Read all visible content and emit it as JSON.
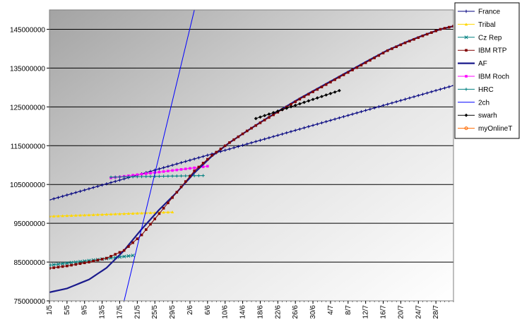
{
  "chart_data": {
    "type": "line",
    "title": "",
    "xlabel": "",
    "ylabel": "",
    "ylim": [
      75000000,
      150000000
    ],
    "y_ticks": [
      75000000,
      85000000,
      95000000,
      105000000,
      115000000,
      125000000,
      135000000,
      145000000
    ],
    "y_tick_labels": [
      "75000000",
      "85000000",
      "95000000",
      "105000000",
      "115000000",
      "125000000",
      "135000000",
      "145000000"
    ],
    "x_tick_labels": [
      "1/5",
      "5/5",
      "9/5",
      "13/5",
      "17/5",
      "21/5",
      "25/5",
      "29/5",
      "2/6",
      "6/6",
      "10/6",
      "14/6",
      "18/6",
      "22/6",
      "26/6",
      "30/6",
      "4/7",
      "8/7",
      "12/7",
      "16/7",
      "20/7",
      "24/7",
      "28/7"
    ],
    "x_day_range": [
      1,
      93
    ],
    "grid": "horizontal",
    "legend_position": "right",
    "background": "gradient-gray",
    "series": [
      {
        "name": "France",
        "color": "#00007f",
        "marker": "plus",
        "x": [
          1,
          93
        ],
        "y": [
          101000000,
          130500000
        ]
      },
      {
        "name": "Tribal",
        "color": "#ffd700",
        "marker": "triangle",
        "x": [
          1,
          29
        ],
        "y": [
          96800000,
          97900000
        ]
      },
      {
        "name": "Cz Rep",
        "color": "#008080",
        "marker": "cross",
        "x": [
          1,
          20
        ],
        "y": [
          84200000,
          86700000
        ]
      },
      {
        "name": "IBM RTP",
        "color": "#800000",
        "marker": "square",
        "x": [
          1,
          5,
          10,
          14,
          18,
          22,
          26,
          30,
          34,
          38,
          42,
          46,
          50,
          54,
          58,
          62,
          66,
          70,
          74,
          78,
          82,
          86,
          90,
          93
        ],
        "y": [
          83400000,
          84000000,
          85000000,
          86000000,
          88000000,
          92000000,
          97500000,
          103000000,
          108500000,
          112500000,
          115800000,
          118800000,
          121600000,
          124300000,
          127000000,
          129500000,
          132000000,
          134500000,
          137000000,
          139500000,
          141500000,
          143300000,
          145000000,
          145800000
        ]
      },
      {
        "name": "AF",
        "color": "#1a1a8c",
        "marker": "none",
        "x": [
          1,
          5,
          10,
          14,
          18,
          22,
          26,
          30,
          34,
          38,
          42,
          46,
          50,
          54,
          58,
          62,
          66,
          70,
          74,
          78,
          82,
          86,
          90,
          93
        ],
        "y": [
          77200000,
          78200000,
          80500000,
          83500000,
          88000000,
          93500000,
          98500000,
          103000000,
          108000000,
          112300000,
          115800000,
          118800000,
          121700000,
          124500000,
          127200000,
          129700000,
          132200000,
          134700000,
          137200000,
          139600000,
          141600000,
          143400000,
          145000000,
          145800000
        ]
      },
      {
        "name": "IBM Roch",
        "color": "#ff00ff",
        "marker": "square",
        "x": [
          15,
          37
        ],
        "y": [
          106700000,
          109700000
        ]
      },
      {
        "name": "HRC",
        "color": "#008080",
        "marker": "plus",
        "x": [
          15,
          36
        ],
        "y": [
          106900000,
          107300000
        ]
      },
      {
        "name": "2ch",
        "color": "#0000ff",
        "marker": "none",
        "x": [
          18,
          34
        ],
        "y": [
          75000000,
          150000000
        ]
      },
      {
        "name": "swarh",
        "color": "#000000",
        "marker": "diamond",
        "x": [
          48,
          67
        ],
        "y": [
          122000000,
          129200000
        ]
      },
      {
        "name": "myOnlineT",
        "color": "#ff6a00",
        "marker": "circle",
        "x": [],
        "y": []
      }
    ]
  }
}
